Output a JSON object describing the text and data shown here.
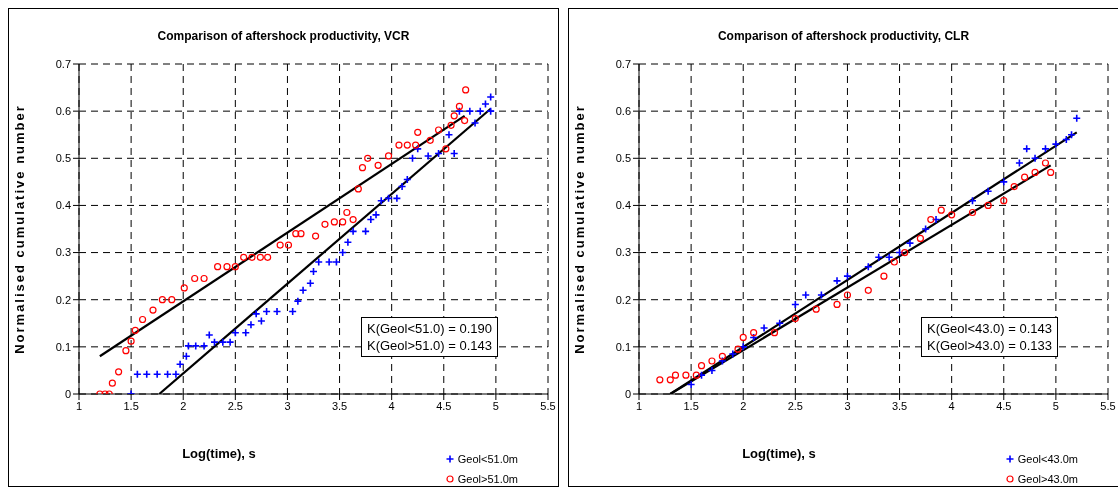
{
  "chart_data": [
    {
      "type": "scatter",
      "title": "Comparison of aftershock productivity, VCR",
      "xlabel": "Log(time), s",
      "ylabel": "Normalised cumulative number",
      "xlim": [
        1,
        5.5
      ],
      "ylim": [
        0,
        0.7
      ],
      "xticks": [
        1,
        1.5,
        2,
        2.5,
        3,
        3.5,
        4,
        4.5,
        5,
        5.5
      ],
      "yticks": [
        0,
        0.1,
        0.2,
        0.3,
        0.4,
        0.5,
        0.6,
        0.7
      ],
      "grid": true,
      "legend": "bottom right",
      "annotations": [
        "K(Geol<51.0) = 0.190",
        "K(Geol>51.0) = 0.143"
      ],
      "series": [
        {
          "name": "Geol<51.0m",
          "color": "#0000ff",
          "marker": "cross",
          "x": [
            1.5,
            1.56,
            1.65,
            1.75,
            1.85,
            1.93,
            1.97,
            2.03,
            2.05,
            2.12,
            2.2,
            2.25,
            2.3,
            2.38,
            2.45,
            2.5,
            2.6,
            2.65,
            2.7,
            2.75,
            2.8,
            2.9,
            3.05,
            3.1,
            3.15,
            3.22,
            3.25,
            3.3,
            3.4,
            3.47,
            3.53,
            3.58,
            3.63,
            3.75,
            3.8,
            3.85,
            3.9,
            3.97,
            4.05,
            4.1,
            4.15,
            4.2,
            4.25,
            4.35,
            4.45,
            4.55,
            4.6,
            4.65,
            4.75,
            4.8,
            4.85,
            4.9,
            4.95,
            4.95
          ],
          "values": [
            0,
            0.042,
            0.042,
            0.042,
            0.042,
            0.042,
            0.063,
            0.08,
            0.102,
            0.102,
            0.102,
            0.125,
            0.11,
            0.11,
            0.11,
            0.13,
            0.13,
            0.147,
            0.17,
            0.155,
            0.175,
            0.175,
            0.175,
            0.197,
            0.22,
            0.235,
            0.26,
            0.28,
            0.28,
            0.28,
            0.3,
            0.322,
            0.345,
            0.345,
            0.37,
            0.38,
            0.41,
            0.415,
            0.415,
            0.44,
            0.455,
            0.5,
            0.52,
            0.505,
            0.51,
            0.55,
            0.51,
            0.6,
            0.6,
            0.575,
            0.6,
            0.615,
            0.63,
            0.6
          ]
        },
        {
          "name": "Geol>51.0m",
          "color": "#ff0000",
          "marker": "circle",
          "x": [
            1.2,
            1.25,
            1.29,
            1.32,
            1.38,
            1.45,
            1.5,
            1.54,
            1.61,
            1.71,
            1.8,
            1.89,
            2.01,
            2.11,
            2.2,
            2.33,
            2.42,
            2.5,
            2.58,
            2.66,
            2.74,
            2.81,
            2.93,
            3.01,
            3.08,
            3.13,
            3.27,
            3.36,
            3.45,
            3.53,
            3.57,
            3.63,
            3.68,
            3.72,
            3.77,
            3.87,
            3.97,
            4.07,
            4.15,
            4.23,
            4.25,
            4.37,
            4.45,
            4.52,
            4.57,
            4.6,
            4.65,
            4.7,
            4.71
          ],
          "values": [
            0,
            0,
            0,
            0.023,
            0.047,
            0.092,
            0.112,
            0.135,
            0.158,
            0.178,
            0.2,
            0.2,
            0.225,
            0.245,
            0.245,
            0.27,
            0.27,
            0.27,
            0.29,
            0.29,
            0.29,
            0.29,
            0.316,
            0.316,
            0.34,
            0.34,
            0.335,
            0.36,
            0.365,
            0.365,
            0.385,
            0.37,
            0.435,
            0.48,
            0.5,
            0.485,
            0.505,
            0.528,
            0.528,
            0.528,
            0.555,
            0.538,
            0.56,
            0.52,
            0.57,
            0.59,
            0.61,
            0.58,
            0.645
          ]
        },
        {
          "type": "line",
          "color": "#000000",
          "marker": "none",
          "x": [
            1.2,
            4.7
          ],
          "values": [
            0.08,
            0.59
          ]
        },
        {
          "type": "line",
          "color": "#000000",
          "marker": "none",
          "x": [
            1.77,
            4.95
          ],
          "values": [
            0,
            0.605
          ]
        }
      ]
    },
    {
      "type": "scatter",
      "title": "Comparison of aftershock productivity, CLR",
      "xlabel": "Log(time), s",
      "ylabel": "Normalised cumulative number",
      "xlim": [
        1,
        5.5
      ],
      "ylim": [
        0,
        0.7
      ],
      "xticks": [
        1,
        1.5,
        2,
        2.5,
        3,
        3.5,
        4,
        4.5,
        5,
        5.5
      ],
      "yticks": [
        0,
        0.1,
        0.2,
        0.3,
        0.4,
        0.5,
        0.6,
        0.7
      ],
      "grid": true,
      "legend": "bottom right",
      "annotations": [
        "K(Geol<43.0) = 0.143",
        "K(Geol>43.0) = 0.133"
      ],
      "series": [
        {
          "name": "Geol<43.0m",
          "color": "#0000ff",
          "marker": "cross",
          "x": [
            1.5,
            1.6,
            1.7,
            1.8,
            1.9,
            2.0,
            2.1,
            2.2,
            2.35,
            2.5,
            2.6,
            2.75,
            2.9,
            3.0,
            3.2,
            3.3,
            3.4,
            3.5,
            3.6,
            3.75,
            3.85,
            4.2,
            4.35,
            4.5,
            4.65,
            4.72,
            4.8,
            4.9,
            5.0,
            5.1,
            5.15,
            5.2
          ],
          "values": [
            0.02,
            0.04,
            0.05,
            0.07,
            0.085,
            0.1,
            0.12,
            0.14,
            0.15,
            0.19,
            0.21,
            0.21,
            0.24,
            0.25,
            0.27,
            0.29,
            0.29,
            0.3,
            0.32,
            0.35,
            0.37,
            0.41,
            0.43,
            0.45,
            0.49,
            0.52,
            0.5,
            0.52,
            0.53,
            0.54,
            0.55,
            0.585
          ]
        },
        {
          "name": "Geol>43.0m",
          "color": "#ff0000",
          "marker": "circle",
          "x": [
            1.2,
            1.3,
            1.35,
            1.45,
            1.55,
            1.6,
            1.7,
            1.8,
            1.95,
            2.0,
            2.1,
            2.3,
            2.5,
            2.7,
            2.9,
            3.0,
            3.2,
            3.35,
            3.45,
            3.55,
            3.7,
            3.8,
            3.9,
            4.0,
            4.2,
            4.35,
            4.5,
            4.6,
            4.7,
            4.8,
            4.9,
            4.95
          ],
          "values": [
            0.03,
            0.03,
            0.04,
            0.04,
            0.04,
            0.06,
            0.07,
            0.08,
            0.095,
            0.12,
            0.13,
            0.13,
            0.16,
            0.18,
            0.19,
            0.21,
            0.22,
            0.25,
            0.28,
            0.3,
            0.33,
            0.37,
            0.39,
            0.38,
            0.385,
            0.4,
            0.41,
            0.44,
            0.46,
            0.47,
            0.49,
            0.47
          ]
        },
        {
          "type": "line",
          "color": "#000000",
          "marker": "none",
          "x": [
            1.3,
            5.2
          ],
          "values": [
            0,
            0.555
          ]
        },
        {
          "type": "line",
          "color": "#000000",
          "marker": "none",
          "x": [
            1.3,
            4.95
          ],
          "values": [
            0,
            0.485
          ]
        }
      ]
    }
  ]
}
